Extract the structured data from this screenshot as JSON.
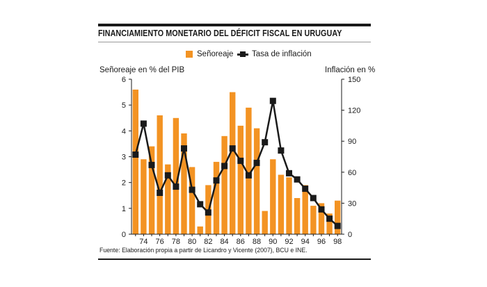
{
  "chart_data": {
    "type": "bar+line",
    "title": "FINANCIAMIENTO MONETARIO DEL DÉFICIT FISCAL EN URUGUAY",
    "legend": {
      "bar": "Señoreaje",
      "line": "Tasa de inflación",
      "placement": "top-right"
    },
    "ylabel_left": "Señoreaje en % del PIB",
    "ylabel_right": "Inflación en %",
    "years": [
      1973,
      1974,
      1975,
      1976,
      1977,
      1978,
      1979,
      1980,
      1981,
      1982,
      1983,
      1984,
      1985,
      1986,
      1987,
      1988,
      1989,
      1990,
      1991,
      1992,
      1993,
      1994,
      1995,
      1996,
      1997,
      1998
    ],
    "x_tick_labels": [
      "74",
      "76",
      "78",
      "80",
      "82",
      "84",
      "86",
      "88",
      "90",
      "92",
      "94",
      "96",
      "98"
    ],
    "series": [
      {
        "name": "Señoreaje",
        "axis": "left",
        "type": "bar",
        "values": [
          5.6,
          2.9,
          3.4,
          4.6,
          2.7,
          4.5,
          3.9,
          2.6,
          0.3,
          1.9,
          2.8,
          3.8,
          5.5,
          4.2,
          4.9,
          4.1,
          0.9,
          2.9,
          2.3,
          2.2,
          1.4,
          1.9,
          1.1,
          1.2,
          0.8,
          1.3
        ]
      },
      {
        "name": "Tasa de inflación",
        "axis": "right",
        "type": "line",
        "values": [
          77,
          107,
          67,
          40,
          57,
          46,
          83,
          43,
          29,
          21,
          52,
          66,
          83,
          71,
          57,
          69,
          89,
          129,
          81,
          59,
          53,
          44,
          35,
          24,
          15,
          8
        ]
      }
    ],
    "ylim_left": [
      0,
      6
    ],
    "yticks_left": [
      0,
      1,
      2,
      3,
      4,
      5,
      6
    ],
    "ylim_right": [
      0,
      150
    ],
    "yticks_right": [
      0,
      30,
      60,
      90,
      120,
      150
    ],
    "colors": {
      "bar": "#f39323",
      "line": "#1a1a1a"
    }
  },
  "source": "Fuente: Elaboración propia a partir de Licandro y Vicente (2007), BCU e INE."
}
